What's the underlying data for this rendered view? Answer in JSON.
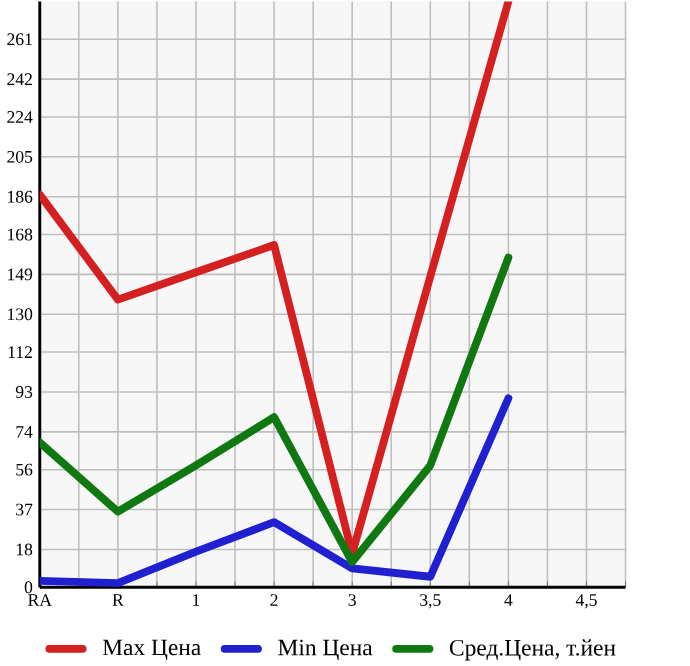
{
  "chart_data": {
    "type": "line",
    "categories": [
      "RA",
      "R",
      "1",
      "2",
      "3",
      "3,5",
      "4",
      "4,5"
    ],
    "series": [
      {
        "name": "Max Цена",
        "color": "#d42020",
        "values": [
          187,
          137,
          150,
          163,
          16,
          148,
          279,
          null
        ]
      },
      {
        "name": "Min Цена",
        "color": "#2020d0",
        "values": [
          3,
          2,
          17,
          31,
          9,
          5,
          90,
          null
        ]
      },
      {
        "name": "Сред.Цена, т.йен",
        "color": "#107810",
        "values": [
          69,
          36,
          58,
          81,
          12,
          58,
          157,
          null
        ]
      }
    ],
    "ylim": [
      0,
      279
    ],
    "yticks": [
      0,
      18,
      37,
      56,
      74,
      93,
      112,
      130,
      149,
      168,
      186,
      205,
      224,
      242,
      261
    ],
    "grid": true,
    "legend": "bottom",
    "marker": "none",
    "line_style": "solid"
  }
}
